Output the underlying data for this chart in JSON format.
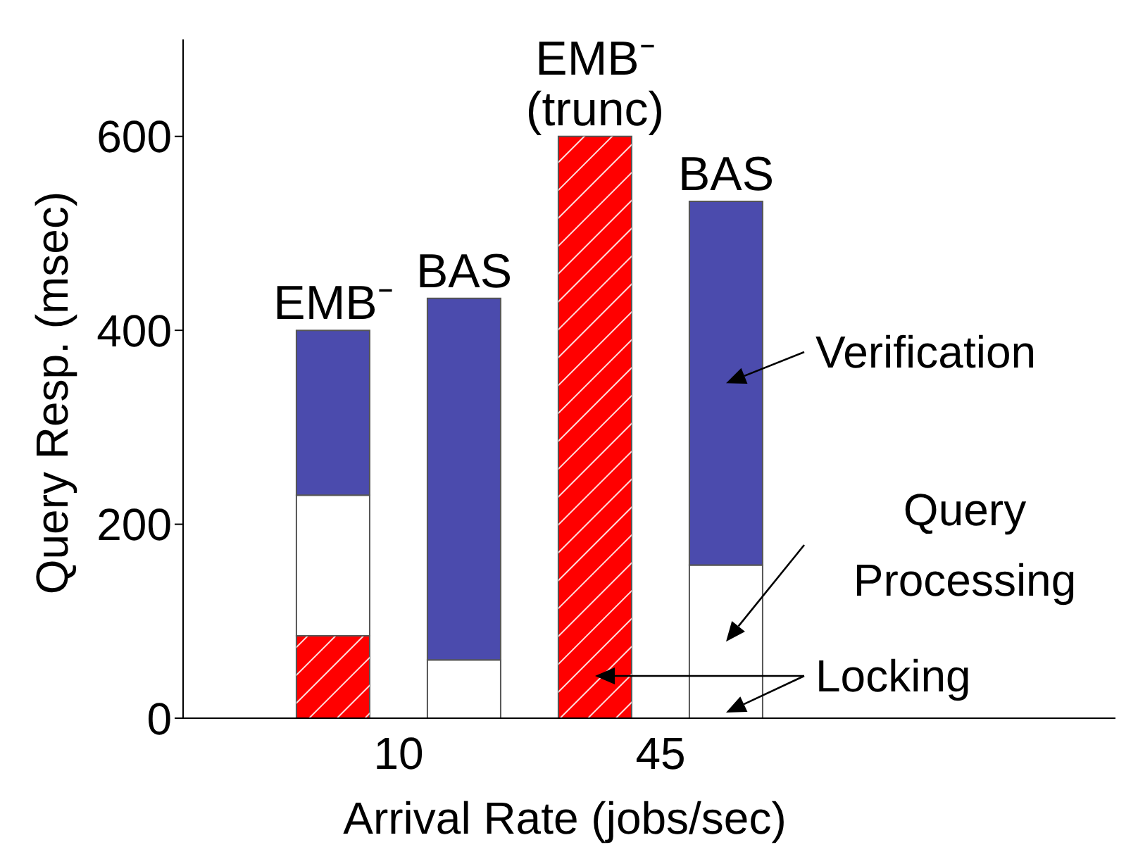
{
  "chart_data": {
    "type": "bar",
    "stacked": true,
    "xlabel": "Arrival Rate (jobs/sec)",
    "ylabel": "Query Resp. (msec)",
    "categories": [
      "EMB⁻",
      "BAS",
      "EMB⁻ (trunc)",
      "BAS"
    ],
    "series": [
      {
        "name": "Locking",
        "color": "#ff0000",
        "values": [
          85,
          null,
          600,
          null
        ]
      },
      {
        "name": "Query Processing",
        "color": "#ffffff",
        "values": [
          145,
          60,
          null,
          158
        ]
      },
      {
        "name": "Verification",
        "color": "#4b4bad",
        "values": [
          170,
          373,
          null,
          375
        ]
      }
    ],
    "ylim": [
      0,
      700
    ],
    "yticks": [
      0,
      200,
      400,
      600
    ],
    "annotations": [
      "10",
      "45"
    ]
  }
}
